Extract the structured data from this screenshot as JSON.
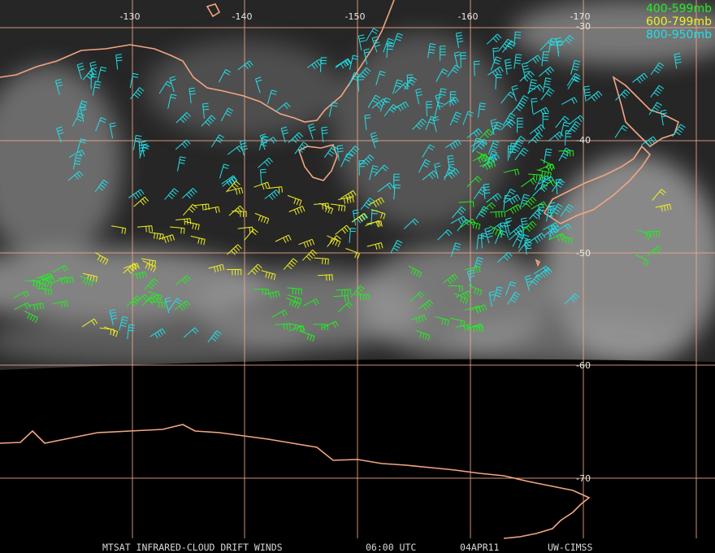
{
  "map": {
    "lon_labels": [
      "-130",
      "-140",
      "-150",
      "-160",
      "-170"
    ],
    "lat_labels": [
      "-30",
      "-40",
      "-50",
      "-60",
      "-70"
    ],
    "legend": [
      {
        "name": "400-599mb",
        "color": "#22ee22"
      },
      {
        "name": "600-799mb",
        "color": "#f0f020"
      },
      {
        "name": "800-950mb",
        "color": "#20e0e8"
      }
    ],
    "footer": [
      "MTSAT INFRARED-CLOUD DRIFT WINDS",
      "06:00 UTC",
      "04APR11",
      "UW-CIMSS"
    ]
  }
}
